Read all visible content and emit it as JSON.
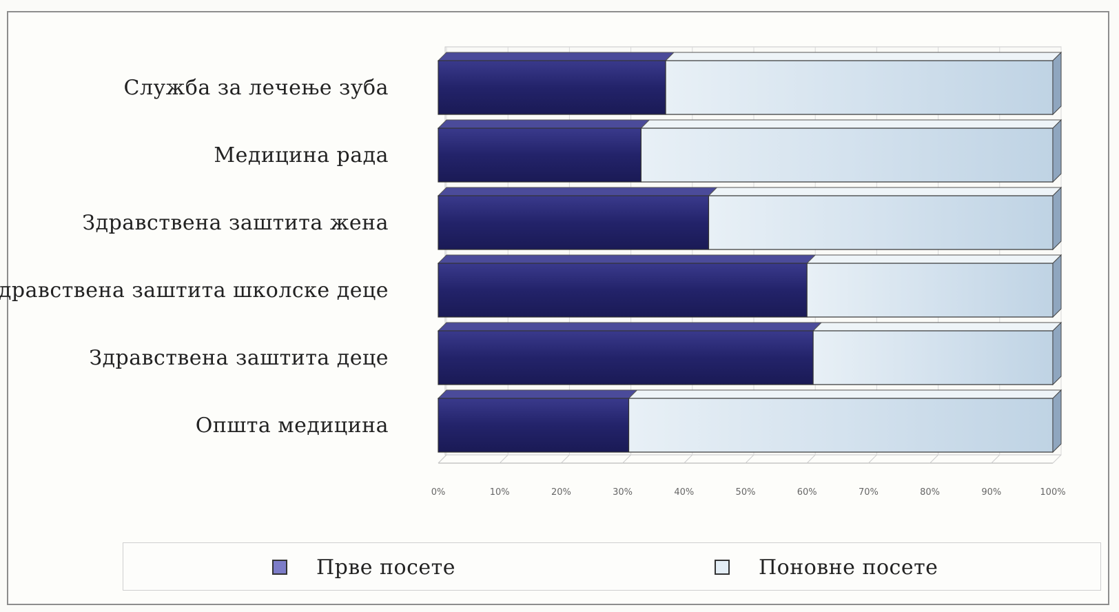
{
  "chart_data": {
    "type": "bar",
    "orientation": "horizontal",
    "stacked": "percent",
    "categories": [
      "Служба за лечење зуба",
      "Медицина рада",
      "Здравствена заштита жена",
      "Здравствена заштита школске деце",
      "Здравствена заштита деце",
      "Општа медицина"
    ],
    "series": [
      {
        "name": "Прве посете",
        "color": "#2a2a78",
        "values": [
          37,
          33,
          44,
          60,
          61,
          31
        ]
      },
      {
        "name": "Поновне посете",
        "color": "#d6e3ee",
        "values": [
          63,
          67,
          56,
          40,
          39,
          69
        ]
      }
    ],
    "x_ticks": [
      "0%",
      "10%",
      "20%",
      "30%",
      "40%",
      "50%",
      "60%",
      "70%",
      "80%",
      "90%",
      "100%"
    ],
    "xlim": [
      0,
      100
    ],
    "grid": true,
    "legend_position": "bottom"
  }
}
